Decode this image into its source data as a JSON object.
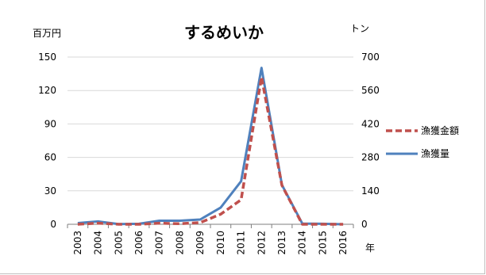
{
  "chart_data": {
    "type": "line",
    "title": "するめいか",
    "y_left_unit": "百万円",
    "y_right_unit": "トン",
    "x_unit": "年",
    "categories": [
      "2003",
      "2004",
      "2005",
      "2006",
      "2007",
      "2008",
      "2009",
      "2010",
      "2011",
      "2012",
      "2013",
      "2014",
      "2015",
      "2016"
    ],
    "y_left_ticks": [
      "0",
      "30",
      "60",
      "90",
      "120",
      "150"
    ],
    "y_right_ticks": [
      "0",
      "140",
      "280",
      "420",
      "560",
      "700"
    ],
    "ylim_left": [
      0,
      150
    ],
    "ylim_right": [
      0,
      700
    ],
    "legend_position": "right",
    "grid": true,
    "series": [
      {
        "name": "漁獲金額",
        "axis": "left",
        "color": "#c0504d",
        "style": "dashed",
        "values": [
          0,
          1,
          0,
          0,
          1,
          0.5,
          1.5,
          9,
          22,
          132,
          35,
          0,
          0,
          0
        ]
      },
      {
        "name": "漁獲量",
        "axis": "right",
        "color": "#4f81bd",
        "style": "solid",
        "values": [
          5,
          12,
          1,
          2,
          15,
          15,
          20,
          70,
          180,
          655,
          165,
          3,
          2,
          0
        ]
      }
    ]
  }
}
